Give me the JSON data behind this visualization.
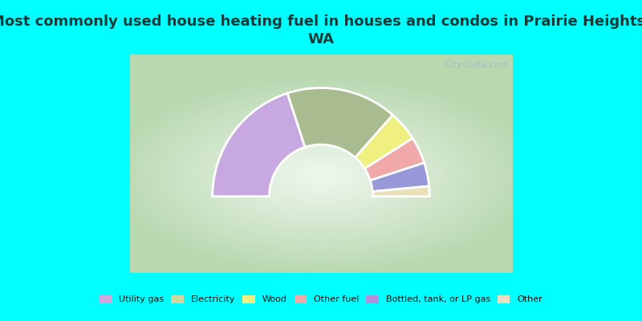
{
  "title": "Most commonly used house heating fuel in houses and condos in Prairie Heights,\nWA",
  "page_bg": "#00FFFF",
  "chart_bg_edge": "#b8d8b0",
  "chart_bg_center": "#f0f8ee",
  "title_color": "#1a3a3a",
  "title_fontsize": 13,
  "segments": [
    {
      "label": "Utility gas",
      "value": 40.0,
      "color": "#c8a8e0"
    },
    {
      "label": "Electricity",
      "value": 33.0,
      "color": "#a8bc90"
    },
    {
      "label": "Wood",
      "value": 9.0,
      "color": "#f0f080"
    },
    {
      "label": "Other fuel",
      "value": 8.0,
      "color": "#f0a8a8"
    },
    {
      "label": "Bottled, tank, or LP gas",
      "value": 7.0,
      "color": "#9898d8"
    },
    {
      "label": "Other",
      "value": 3.0,
      "color": "#e8e0b8"
    }
  ],
  "legend_labels": [
    "Utility gas",
    "Electricity",
    "Wood",
    "Other fuel",
    "Bottled, tank, or LP gas",
    "Other"
  ],
  "legend_colors": [
    "#d0a8e0",
    "#d0d8a0",
    "#f0f080",
    "#f0a8a8",
    "#b090d8",
    "#e8e0c0"
  ],
  "outer_r": 0.88,
  "inner_r": 0.42,
  "watermark": "City-Data.com",
  "watermark_color": "#a0b8c8"
}
